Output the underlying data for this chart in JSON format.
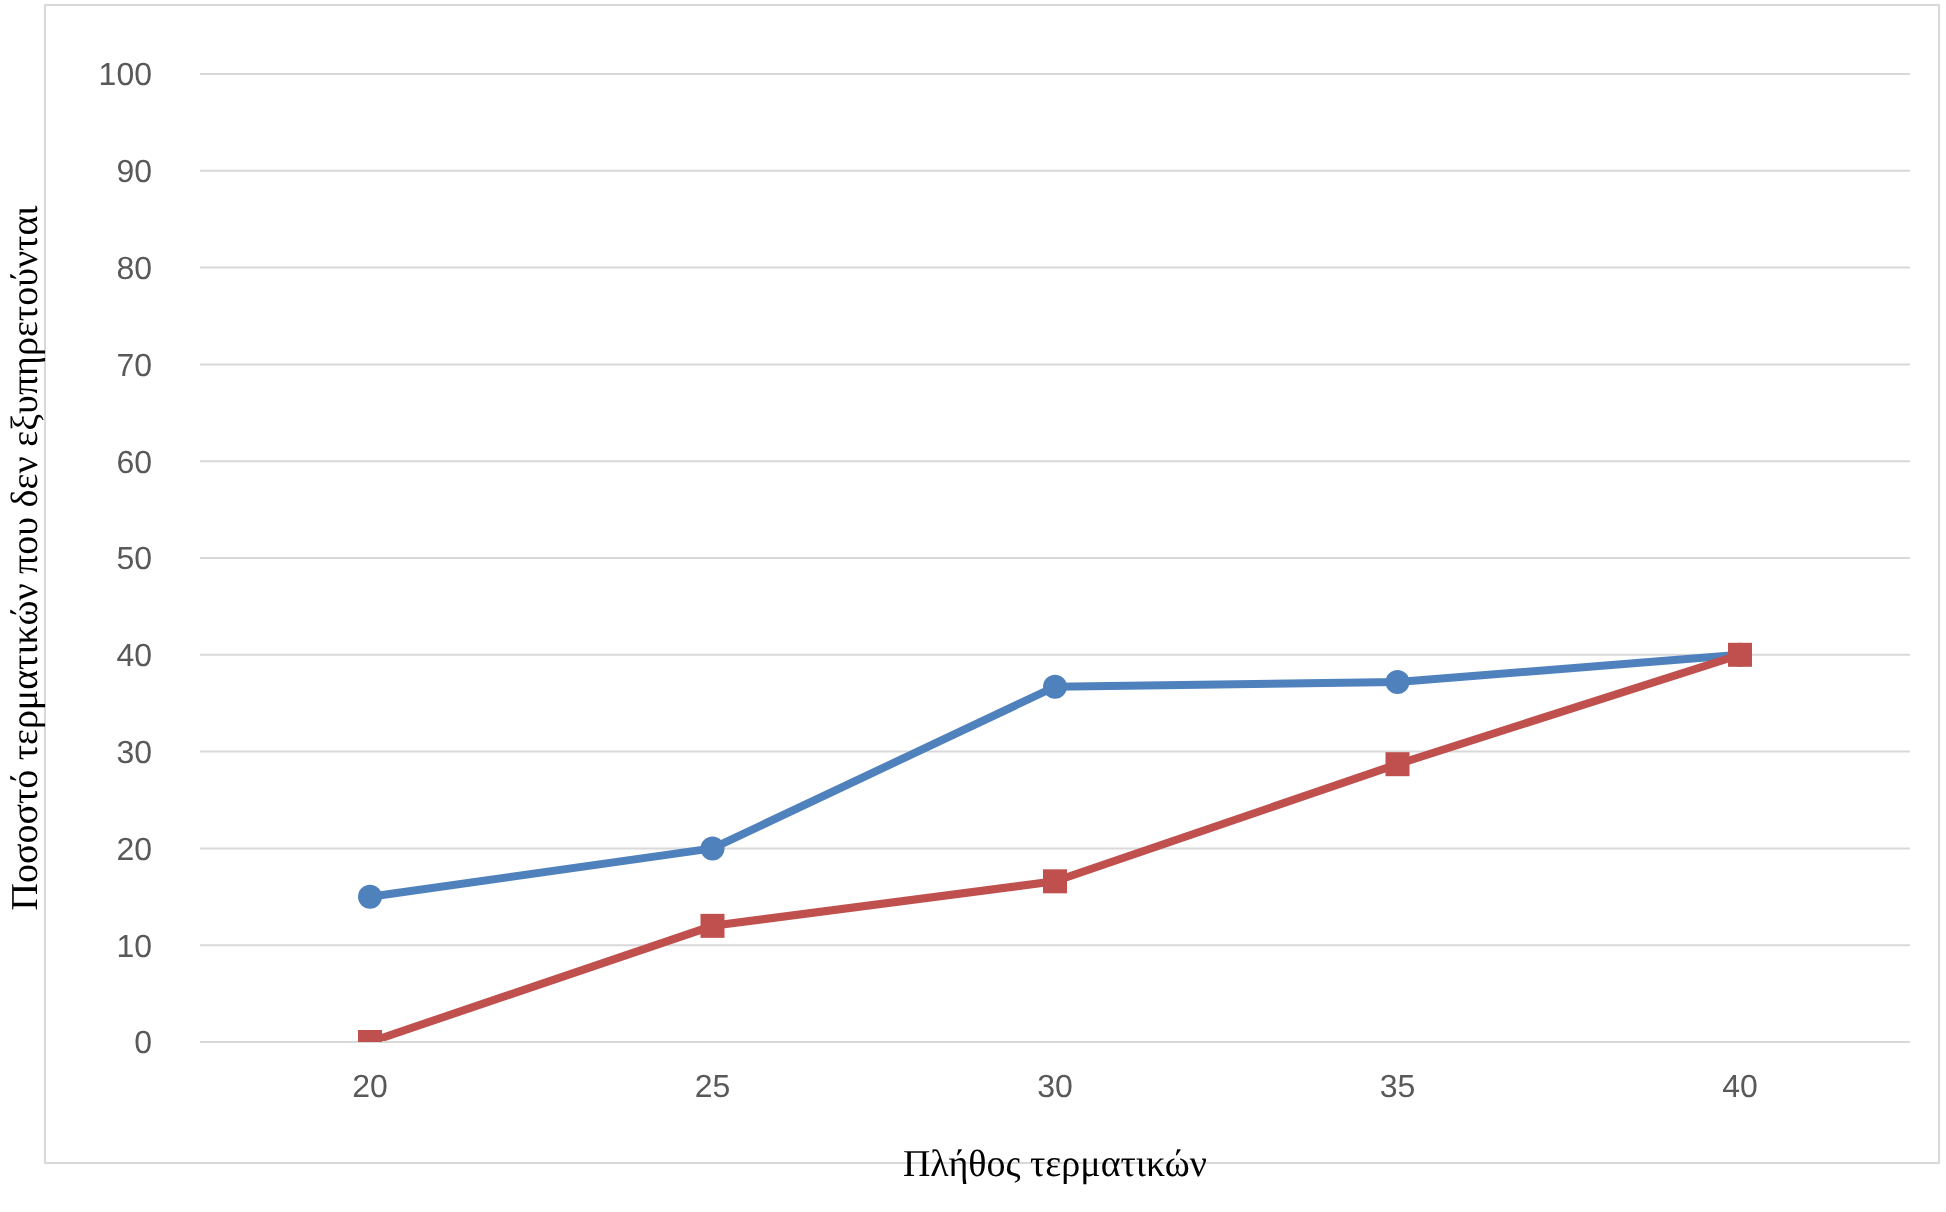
{
  "chart_data": {
    "type": "line",
    "xlabel": "Πλήθος τερματικών",
    "ylabel": "Ποσοστό τερματικών που δεν εξυπηρετούνται",
    "categories": [
      "20",
      "25",
      "30",
      "35",
      "40"
    ],
    "series": [
      {
        "color": "#4f81bd",
        "marker": "circle",
        "values": [
          15,
          20,
          36.7,
          37.2,
          40
        ]
      },
      {
        "color": "#c0504d",
        "marker": "square",
        "values": [
          0,
          12,
          16.6,
          28.7,
          40
        ]
      }
    ],
    "ylim": [
      0,
      100
    ],
    "yticks": [
      0,
      10,
      20,
      30,
      40,
      50,
      60,
      70,
      80,
      90,
      100
    ],
    "grid": "y"
  }
}
